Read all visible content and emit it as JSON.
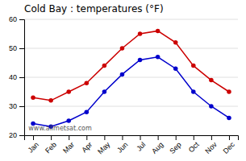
{
  "chart_data": {
    "type": "line",
    "title": "Cold Bay : temperatures (°F)",
    "categories": [
      "Jan",
      "Feb",
      "Mar",
      "Apr",
      "May",
      "Jun",
      "Jul",
      "Aug",
      "Sep",
      "Oct",
      "Nov",
      "Dec"
    ],
    "series": [
      {
        "color": "#cc0000",
        "values": [
          33,
          32,
          35,
          38,
          44,
          50,
          55,
          56,
          52,
          44,
          39,
          35
        ]
      },
      {
        "color": "#0000cc",
        "values": [
          24,
          23,
          25,
          28,
          35,
          41,
          46,
          47,
          43,
          35,
          30,
          26
        ]
      }
    ],
    "ylim": [
      20,
      60
    ],
    "yticks": [
      20,
      30,
      40,
      50,
      60
    ],
    "grid": true,
    "marker": "circle",
    "annotations": [
      "www.allmetsat.com"
    ]
  }
}
